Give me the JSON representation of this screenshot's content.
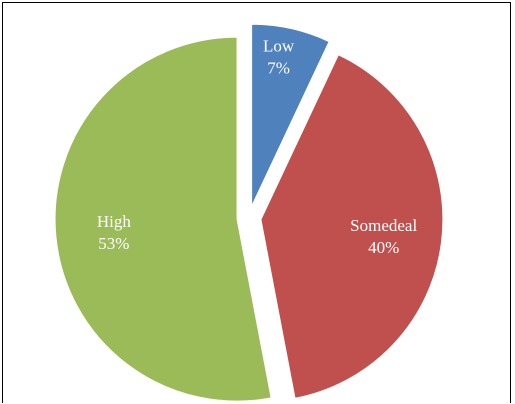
{
  "chart_data": {
    "type": "pie",
    "title": "",
    "legend": "none",
    "start_angle_deg": 0,
    "direction": "clockwise",
    "exploded": true,
    "slices": [
      {
        "category": "Low",
        "value": 7,
        "label": "Low",
        "pct_label": "7%",
        "color": "#4f81bd"
      },
      {
        "category": "Somedeal",
        "value": 40,
        "label": "Somedeal",
        "pct_label": "40%",
        "color": "#c0504d"
      },
      {
        "category": "High",
        "value": 53,
        "label": "High",
        "pct_label": "53%",
        "color": "#9bbb59"
      }
    ]
  }
}
